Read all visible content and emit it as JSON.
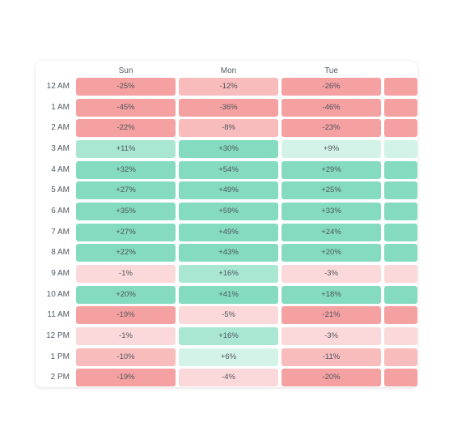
{
  "chart_data": {
    "type": "heatmap",
    "columns": [
      "Sun",
      "Mon",
      "Tue"
    ],
    "rows": [
      "12 AM",
      "1 AM",
      "2 AM",
      "3 AM",
      "4 AM",
      "5 AM",
      "6 AM",
      "7 AM",
      "8 AM",
      "9 AM",
      "10 AM",
      "11 AM",
      "12 PM",
      "1 PM",
      "2 PM"
    ],
    "values": [
      [
        -25,
        -12,
        -26
      ],
      [
        -45,
        -36,
        -46
      ],
      [
        -22,
        -8,
        -23
      ],
      [
        11,
        30,
        9
      ],
      [
        32,
        54,
        29
      ],
      [
        27,
        49,
        25
      ],
      [
        35,
        59,
        33
      ],
      [
        27,
        49,
        24
      ],
      [
        22,
        43,
        20
      ],
      [
        -1,
        16,
        -3
      ],
      [
        20,
        41,
        18
      ],
      [
        -19,
        -5,
        -21
      ],
      [
        -1,
        16,
        -3
      ],
      [
        -10,
        6,
        -11
      ],
      [
        -19,
        -4,
        -20
      ]
    ],
    "value_format": "signed-percent",
    "partial_fourth_column_visible": true,
    "colors": {
      "negative_strong": "#f5a0a1",
      "negative_mid": "#f8bcbd",
      "negative_light": "#fbd8d9",
      "positive_strong": "#85dbc0",
      "positive_mid": "#a9e7d3",
      "positive_light": "#d4f3e8"
    }
  }
}
